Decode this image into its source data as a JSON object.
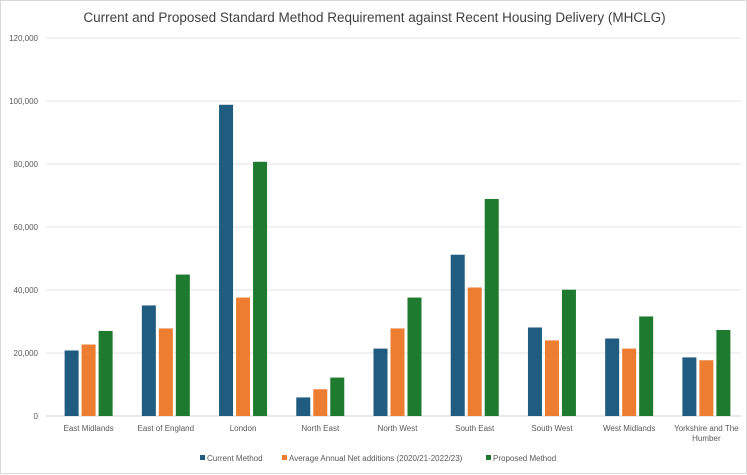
{
  "chart_data": {
    "type": "bar",
    "title": "Current and Proposed Standard Method Requirement against Recent Housing Delivery (MHCLG)",
    "xlabel": "",
    "ylabel": "",
    "ylim": [
      0,
      120000
    ],
    "yticks": [
      0,
      20000,
      40000,
      60000,
      80000,
      100000,
      120000
    ],
    "ytick_labels": [
      "0",
      "20,000",
      "40,000",
      "60,000",
      "80,000",
      "100,000",
      "120,000"
    ],
    "grid": true,
    "legend_position": "bottom",
    "categories": [
      [
        "East Midlands"
      ],
      [
        "East of England"
      ],
      [
        "London"
      ],
      [
        "North East"
      ],
      [
        "North West"
      ],
      [
        "South East"
      ],
      [
        "South West"
      ],
      [
        "West Midlands"
      ],
      [
        "Yorkshire and The",
        "Humber"
      ]
    ],
    "series": [
      {
        "name": "Current Method",
        "color": "#1f5c7f",
        "values": [
          20800,
          35100,
          98800,
          5900,
          21400,
          51200,
          28100,
          24600,
          18600
        ]
      },
      {
        "name": "Average Annual Net additions (2020/21-2022/23)",
        "color": "#ed7d31",
        "values": [
          22700,
          27800,
          37600,
          8500,
          27800,
          40800,
          24000,
          21400,
          17700
        ]
      },
      {
        "name": "Proposed Method",
        "color": "#1e7a2e",
        "values": [
          27000,
          44900,
          80700,
          12200,
          37600,
          68900,
          40100,
          31600,
          27300
        ]
      }
    ]
  }
}
